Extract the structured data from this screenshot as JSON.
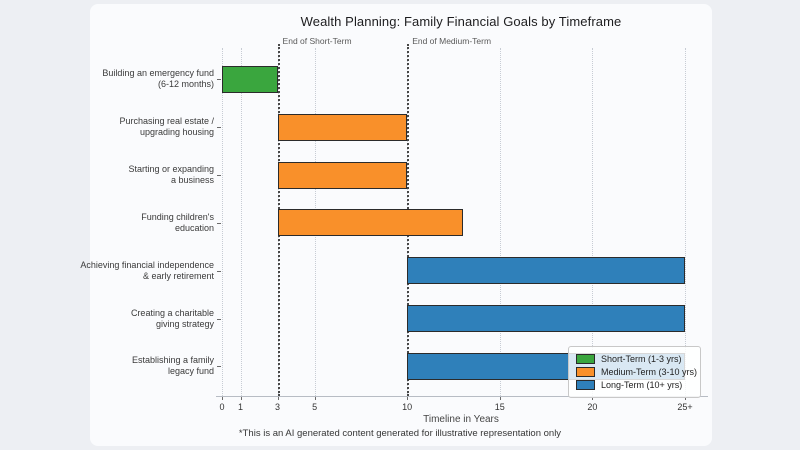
{
  "chart_data": {
    "type": "bar",
    "orientation": "horizontal",
    "title": "Wealth Planning: Family Financial Goals by Timeframe",
    "xlabel": "Timeline in Years",
    "footnote": "*This is an AI generated content generated for illustrative representation only",
    "xlim": [
      0,
      26
    ],
    "grid": "vertical-dotted",
    "legend_position": "lower-right",
    "bar_edge_color": "#2b2b2b",
    "xticks": [
      {
        "v": 0,
        "label": "0"
      },
      {
        "v": 1,
        "label": "1"
      },
      {
        "v": 3,
        "label": "3"
      },
      {
        "v": 5,
        "label": "5"
      },
      {
        "v": 10,
        "label": "10"
      },
      {
        "v": 15,
        "label": "15"
      },
      {
        "v": 20,
        "label": "20"
      },
      {
        "v": 25,
        "label": "25+"
      }
    ],
    "rows": [
      {
        "label_lines": [
          "Building an emergency fund",
          "(6-12 months)"
        ],
        "start": 0,
        "end": 3,
        "term": "short"
      },
      {
        "label_lines": [
          "Purchasing real estate /",
          "upgrading housing"
        ],
        "start": 3,
        "end": 10,
        "term": "medium"
      },
      {
        "label_lines": [
          "Starting or expanding",
          "a business"
        ],
        "start": 3,
        "end": 10,
        "term": "medium"
      },
      {
        "label_lines": [
          "Funding children's",
          "education"
        ],
        "start": 3,
        "end": 13,
        "term": "medium"
      },
      {
        "label_lines": [
          "Achieving financial independence",
          "& early retirement"
        ],
        "start": 10,
        "end": 25,
        "term": "long"
      },
      {
        "label_lines": [
          "Creating a charitable",
          "giving strategy"
        ],
        "start": 10,
        "end": 25,
        "term": "long"
      },
      {
        "label_lines": [
          "Establishing a family",
          "legacy fund"
        ],
        "start": 10,
        "end": 25,
        "term": "long"
      }
    ],
    "legend": [
      {
        "term": "short",
        "label": "Short-Term (1-3 yrs)",
        "color": "#3aa63e"
      },
      {
        "term": "medium",
        "label": "Medium-Term (3-10 yrs)",
        "color": "#f9902a"
      },
      {
        "term": "long",
        "label": "Long-Term (10+ yrs)",
        "color": "#2f80ba"
      }
    ],
    "annotations": [
      {
        "x": 3,
        "label": "End of Short-Term"
      },
      {
        "x": 10,
        "label": "End of Medium-Term"
      }
    ]
  }
}
